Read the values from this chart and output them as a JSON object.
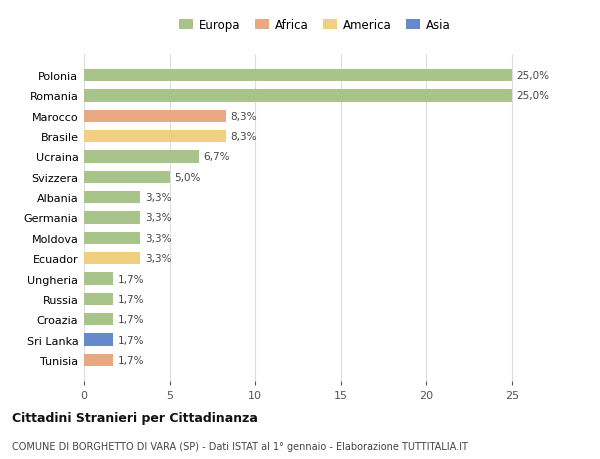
{
  "categories": [
    "Polonia",
    "Romania",
    "Marocco",
    "Brasile",
    "Ucraina",
    "Svizzera",
    "Albania",
    "Germania",
    "Moldova",
    "Ecuador",
    "Ungheria",
    "Russia",
    "Croazia",
    "Sri Lanka",
    "Tunisia"
  ],
  "values": [
    25.0,
    25.0,
    8.3,
    8.3,
    6.7,
    5.0,
    3.3,
    3.3,
    3.3,
    3.3,
    1.7,
    1.7,
    1.7,
    1.7,
    1.7
  ],
  "labels": [
    "25,0%",
    "25,0%",
    "8,3%",
    "8,3%",
    "6,7%",
    "5,0%",
    "3,3%",
    "3,3%",
    "3,3%",
    "3,3%",
    "1,7%",
    "1,7%",
    "1,7%",
    "1,7%",
    "1,7%"
  ],
  "colors": [
    "#a8c48a",
    "#a8c48a",
    "#e8a882",
    "#f0d080",
    "#a8c48a",
    "#a8c48a",
    "#a8c48a",
    "#a8c48a",
    "#a8c48a",
    "#f0d080",
    "#a8c48a",
    "#a8c48a",
    "#a8c48a",
    "#6688cc",
    "#e8a882"
  ],
  "legend_labels": [
    "Europa",
    "Africa",
    "America",
    "Asia"
  ],
  "legend_colors": [
    "#a8c48a",
    "#e8a882",
    "#f0d080",
    "#6688cc"
  ],
  "title": "Cittadini Stranieri per Cittadinanza",
  "subtitle": "COMUNE DI BORGHETTO DI VARA (SP) - Dati ISTAT al 1° gennaio - Elaborazione TUTTITALIA.IT",
  "xlim": [
    0,
    27
  ],
  "xticks": [
    0,
    5,
    10,
    15,
    20,
    25
  ],
  "background_color": "#ffffff",
  "grid_color": "#dddddd",
  "bar_height": 0.6
}
